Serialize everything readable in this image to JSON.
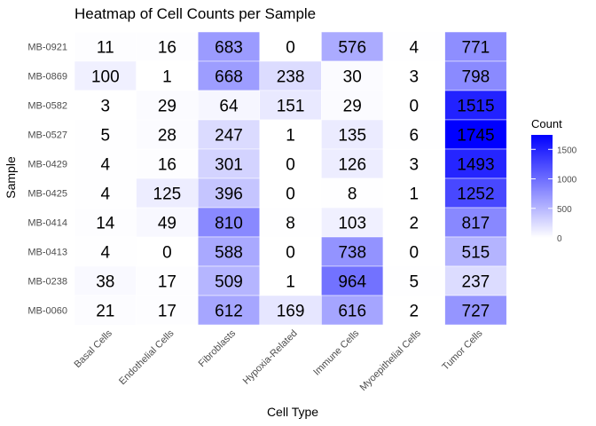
{
  "chart_data": {
    "type": "heatmap",
    "title": "Heatmap of Cell Counts per Sample",
    "xlabel": "Cell Type",
    "ylabel": "Sample",
    "x_categories": [
      "Basal Cells",
      "Endothelial Cells",
      "Fibroblasts",
      "Hypoxia-Related",
      "Immune Cells",
      "Myoepithelial Cells",
      "Tumor Cells"
    ],
    "y_categories": [
      "MB-0921",
      "MB-0869",
      "MB-0582",
      "MB-0527",
      "MB-0429",
      "MB-0425",
      "MB-0414",
      "MB-0413",
      "MB-0238",
      "MB-0060"
    ],
    "values": [
      [
        11,
        16,
        683,
        0,
        576,
        4,
        771
      ],
      [
        100,
        1,
        668,
        238,
        30,
        3,
        798
      ],
      [
        3,
        29,
        64,
        151,
        29,
        0,
        1515
      ],
      [
        5,
        28,
        247,
        1,
        135,
        6,
        1745
      ],
      [
        4,
        16,
        301,
        0,
        126,
        3,
        1493
      ],
      [
        4,
        125,
        396,
        0,
        8,
        1,
        1252
      ],
      [
        14,
        49,
        810,
        8,
        103,
        2,
        817
      ],
      [
        4,
        0,
        588,
        0,
        738,
        0,
        515
      ],
      [
        38,
        17,
        509,
        1,
        964,
        5,
        237
      ],
      [
        21,
        17,
        612,
        169,
        616,
        2,
        727
      ]
    ],
    "color_scale": {
      "low": "#ffffff",
      "high": "#0000ff",
      "min": 0,
      "max": 1745
    },
    "legend": {
      "title": "Count",
      "ticks": [
        0,
        500,
        1000,
        1500
      ],
      "placement": "right"
    },
    "grid": true
  }
}
